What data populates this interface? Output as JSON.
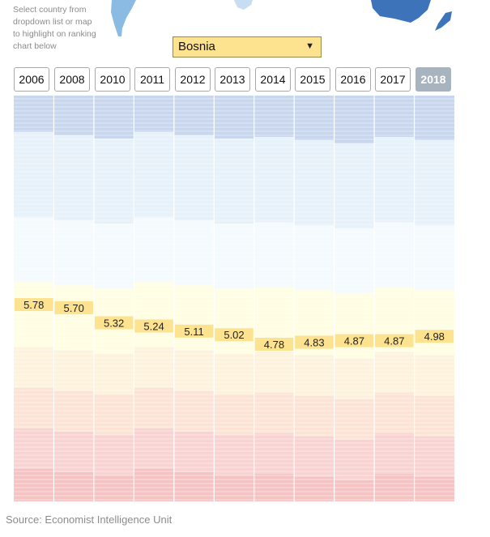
{
  "instruction_lines": [
    "Select country from",
    "dropdown list or map",
    "to highlight on ranking",
    "chart below"
  ],
  "selected_country": "Bosnia",
  "active_year": "2018",
  "source": "Source: Economist Intelligence Unit",
  "colors": {
    "highlight": "#fde28f",
    "active_tab": "#a7b3bf",
    "bands": [
      "#c8d7ee",
      "#e6f1fa",
      "#f4fafd",
      "#fffde2",
      "#fdf2dc",
      "#fce3d6",
      "#f9d2d2",
      "#f5c3c3"
    ]
  },
  "chart_data": {
    "type": "bar",
    "title": "",
    "xlabel": "",
    "ylabel": "",
    "categories": [
      "2006",
      "2008",
      "2010",
      "2011",
      "2012",
      "2013",
      "2014",
      "2015",
      "2016",
      "2017",
      "2018"
    ],
    "series": [
      {
        "values": [
          5.78,
          5.7,
          5.32,
          5.24,
          5.11,
          5.02,
          4.78,
          4.83,
          4.87,
          4.87,
          4.98
        ]
      }
    ],
    "value_labels": [
      "5.78",
      "5.70",
      "5.32",
      "5.24",
      "5.11",
      "5.02",
      "4.78",
      "4.83",
      "4.87",
      "4.87",
      "4.98"
    ],
    "grid": false,
    "legend": "none"
  }
}
